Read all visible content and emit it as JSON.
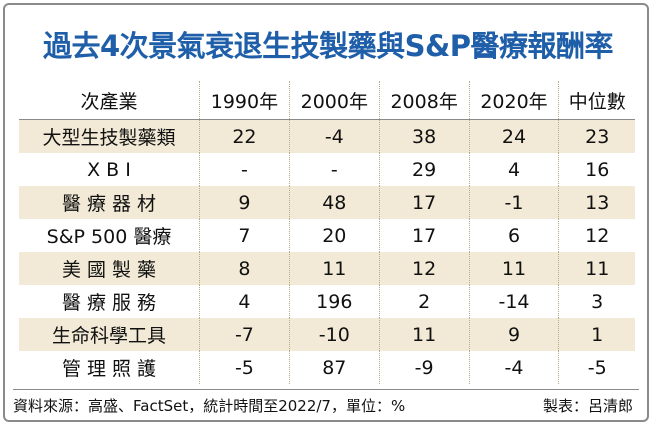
{
  "header": {
    "title": "過去4次景氣衰退生技製藥與S&P醫療報酬率"
  },
  "table": {
    "columns": [
      "次產業",
      "1990年",
      "2000年",
      "2008年",
      "2020年",
      "中位數"
    ],
    "rows": [
      [
        "大型生技製藥類",
        22,
        -4,
        38,
        24,
        23
      ],
      [
        "X B I",
        "-",
        "-",
        29,
        4,
        16
      ],
      [
        "醫 療 器 材",
        9,
        48,
        17,
        -1,
        13
      ],
      [
        "S&P 500 醫療",
        7,
        20,
        17,
        6,
        12
      ],
      [
        "美 國 製 藥",
        8,
        11,
        12,
        11,
        11
      ],
      [
        "醫 療 服 務",
        4,
        196,
        2,
        -14,
        3
      ],
      [
        "生命科學工具",
        -7,
        -10,
        11,
        9,
        1
      ],
      [
        "管 理 照 護",
        -5,
        87,
        -9,
        -4,
        -5
      ]
    ]
  },
  "footer": {
    "source": "資料來源：高盛、FactSet，統計時間至2022/7，單位：%",
    "credit": "製表：呂清郎"
  }
}
